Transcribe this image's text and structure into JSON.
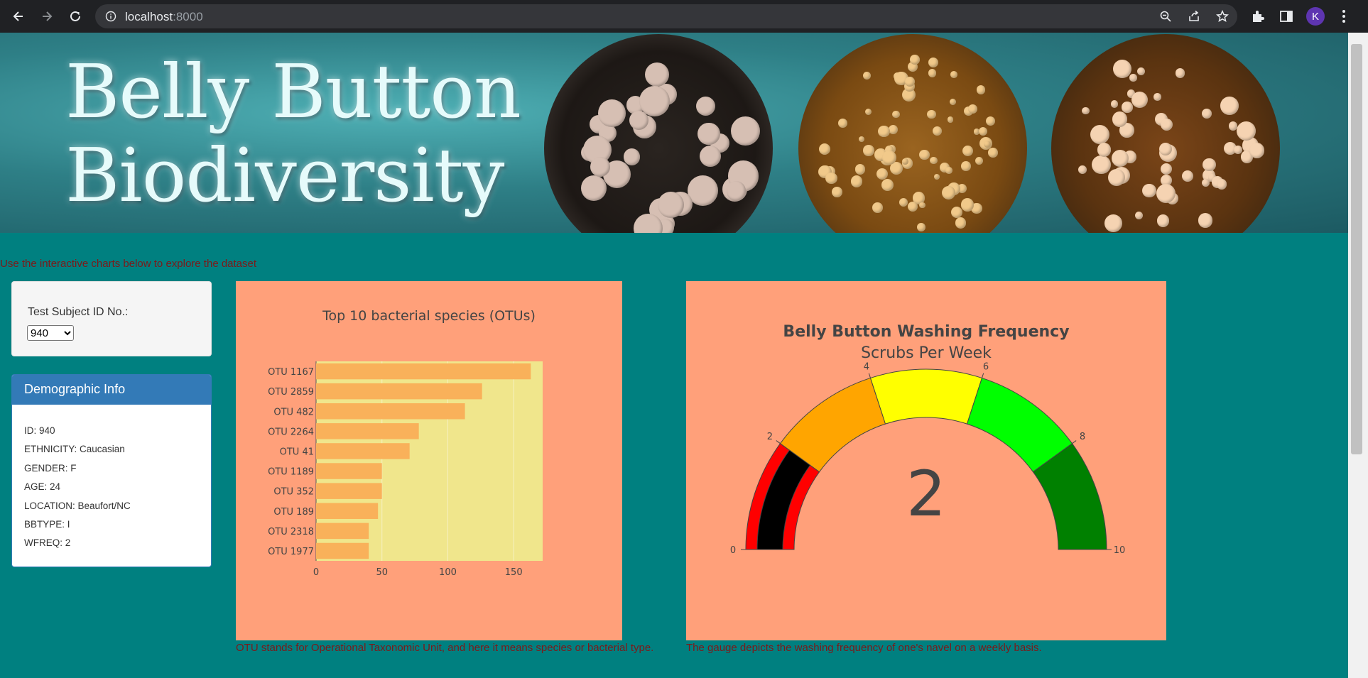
{
  "browser": {
    "url_host": "localhost",
    "url_port": ":8000",
    "avatar_letter": "K"
  },
  "banner": {
    "title_line1": "Belly Button",
    "title_line2": "Biodiversity"
  },
  "intro_text": "Use the interactive charts below to explore the dataset",
  "selector": {
    "label": "Test Subject ID No.:",
    "selected": "940"
  },
  "demographics": {
    "heading": "Demographic Info",
    "rows": [
      "ID: 940",
      "ETHNICITY: Caucasian",
      "GENDER: F",
      "AGE: 24",
      "LOCATION: Beaufort/NC",
      "BBTYPE: I",
      "WFREQ: 2"
    ]
  },
  "bar_caption": "OTU stands for Operational Taxonomic Unit, and here it means species or bacterial type.",
  "gauge_caption": "The gauge depicts the washing frequency of one's navel on a weekly basis.",
  "colors": {
    "page_bg": "#008080",
    "panel_bg": "#ffa07a",
    "plot_bg": "#f0e68c",
    "bar": "#f9b15a",
    "caption_text": "#7b1a1a",
    "demo_heading": "#337ab7"
  },
  "chart_data": [
    {
      "type": "bar",
      "orientation": "horizontal",
      "title": "Top 10 bacterial species (OTUs)",
      "categories": [
        "OTU 1167",
        "OTU 2859",
        "OTU 482",
        "OTU 2264",
        "OTU 41",
        "OTU 1189",
        "OTU 352",
        "OTU 189",
        "OTU 2318",
        "OTU 1977"
      ],
      "values": [
        163,
        126,
        113,
        78,
        71,
        50,
        50,
        47,
        40,
        40
      ],
      "xlim": [
        0,
        172
      ],
      "xticks": [
        0,
        50,
        100,
        150
      ],
      "grid": true
    },
    {
      "type": "gauge",
      "title": "Belly Button Washing Frequency",
      "subtitle": "Scrubs Per Week",
      "value": 2,
      "range": [
        0,
        10
      ],
      "ticks": [
        0,
        2,
        4,
        6,
        8,
        10
      ],
      "steps": [
        {
          "range": [
            0,
            2
          ],
          "color": "#ff0000"
        },
        {
          "range": [
            2,
            4
          ],
          "color": "#ffa500"
        },
        {
          "range": [
            4,
            6
          ],
          "color": "#ffff00"
        },
        {
          "range": [
            6,
            8
          ],
          "color": "#00ff00"
        },
        {
          "range": [
            8,
            10
          ],
          "color": "#008000"
        }
      ],
      "bar_color": "#000000"
    }
  ]
}
